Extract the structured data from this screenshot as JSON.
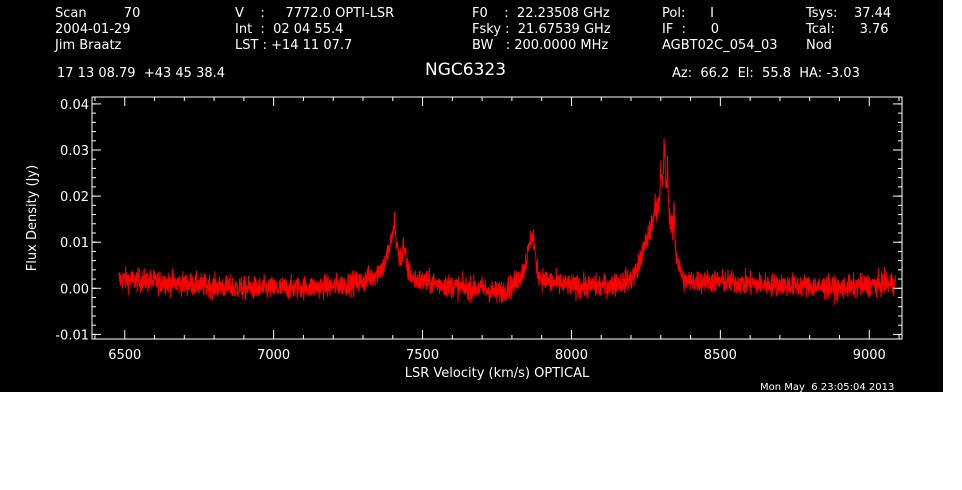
{
  "header": {
    "col1": [
      "Scan         70",
      "2004-01-29",
      "Jim Braatz"
    ],
    "col2": [
      "V    :     7772.0 OPTI-LSR",
      "Int  :  02 04 55.4",
      "LST : +14 11 07.7"
    ],
    "col3": [
      "F0    :  22.23508 GHz",
      "Fsky :  21.67539 GHz",
      "BW   : 200.0000 MHz"
    ],
    "col4": [
      "Pol:      I",
      "IF  :      0",
      "AGBT02C_054_03"
    ],
    "col5": [
      "Tsys:    37.44",
      "Tcal:      3.76",
      "Nod"
    ],
    "coords": "17 13 08.79  +43 45 38.4",
    "source": "NGC6323",
    "pointing": "Az:  66.2  El:  55.8  HA: -3.03",
    "timestamp": "Mon May  6 23:05:04 2013"
  },
  "colors": {
    "background": "#000000",
    "axes": "#ffffff",
    "trace": "#ff0000"
  },
  "chart_data": {
    "type": "line",
    "xlabel": "LSR Velocity (km/s) OPTICAL",
    "ylabel": "Flux Density (Jy)",
    "xlim": [
      6390,
      9110
    ],
    "ylim": [
      -0.011,
      0.0415
    ],
    "xticks": [
      "6500",
      "7000",
      "7500",
      "8000",
      "8500",
      "9000"
    ],
    "yticks": [
      "-0.01",
      "0.00",
      "0.01",
      "0.02",
      "0.03",
      "0.04"
    ],
    "noise_rms": 0.0018,
    "series": [
      {
        "x": [
          6480,
          6600,
          6700,
          6800,
          6900,
          7000,
          7100,
          7200,
          7300,
          7340,
          7370,
          7390,
          7400,
          7405,
          7410,
          7420,
          7430,
          7440,
          7450,
          7470,
          7500,
          7550,
          7600,
          7650,
          7700,
          7750,
          7800,
          7820,
          7840,
          7855,
          7865,
          7875,
          7885,
          7900,
          7950,
          8000,
          8050,
          8100,
          8150,
          8200,
          8220,
          8240,
          8260,
          8280,
          8290,
          8300,
          8310,
          8315,
          8320,
          8330,
          8340,
          8350,
          8360,
          8370,
          8380,
          8400,
          8450,
          8500,
          8600,
          8700,
          8800,
          8900,
          9000,
          9090
        ],
        "values": [
          0.002,
          0.0015,
          0.001,
          0.0005,
          0.0,
          0.0,
          0.0002,
          0.0005,
          0.0015,
          0.003,
          0.005,
          0.009,
          0.012,
          0.013,
          0.011,
          0.007,
          0.007,
          0.008,
          0.004,
          0.002,
          0.0015,
          0.001,
          0.0005,
          0.0,
          0.0,
          -0.001,
          0.0005,
          0.002,
          0.004,
          0.008,
          0.011,
          0.009,
          0.004,
          0.002,
          0.001,
          0.0005,
          0.0005,
          0.0005,
          0.001,
          0.002,
          0.004,
          0.008,
          0.012,
          0.015,
          0.018,
          0.021,
          0.025,
          0.024,
          0.02,
          0.016,
          0.012,
          0.008,
          0.005,
          0.003,
          0.0015,
          0.0015,
          0.0015,
          0.0015,
          0.001,
          0.0008,
          0.0005,
          0.0,
          0.0008,
          0.001
        ],
        "spikes": [
          [
            7406,
            0.0155
          ],
          [
            7435,
            0.011
          ],
          [
            7872,
            0.0125
          ],
          [
            8280,
            0.022
          ],
          [
            8300,
            0.027
          ],
          [
            8312,
            0.0345
          ],
          [
            8323,
            0.029
          ],
          [
            8345,
            0.02
          ]
        ]
      }
    ]
  }
}
